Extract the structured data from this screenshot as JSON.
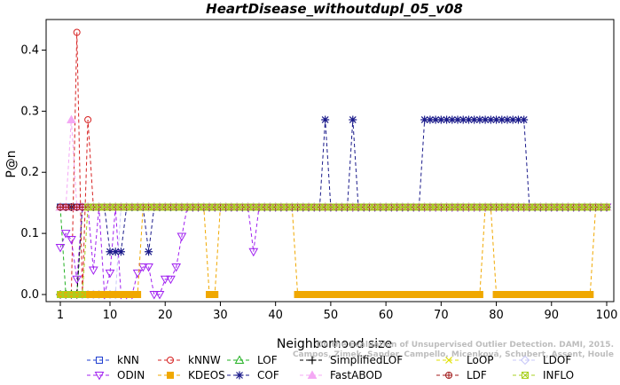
{
  "chart_data": {
    "type": "line",
    "title": "HeartDisease_withoutdupl_05_v08",
    "xlabel": "Neighborhood size",
    "ylabel": "P@n",
    "xlim": [
      1,
      100
    ],
    "ylim": [
      0,
      0.45
    ],
    "xticks": [
      1,
      10,
      20,
      30,
      40,
      50,
      60,
      70,
      80,
      90,
      100
    ],
    "yticks": [
      0.0,
      0.1,
      0.2,
      0.3,
      0.4
    ],
    "ytick_labels": [
      "0.0",
      "0.1",
      "0.2",
      "0.3",
      "0.4"
    ],
    "grid": false,
    "legend_placement": "bottom",
    "series": [
      {
        "name": "kNN",
        "color": "#1f3fd0",
        "marker": "square",
        "constant": 0.143,
        "start": 1,
        "overrides": []
      },
      {
        "name": "kNNW",
        "color": "#d62020",
        "marker": "circle",
        "constant": 0.143,
        "start": 5,
        "overrides": [
          [
            1,
            0
          ],
          [
            2,
            0
          ],
          [
            3,
            0
          ],
          [
            4,
            0.429
          ],
          [
            5,
            0
          ],
          [
            6,
            0.286
          ]
        ]
      },
      {
        "name": "LOF",
        "color": "#20b020",
        "marker": "triangle-up",
        "constant": 0.143,
        "start": 6,
        "overrides": [
          [
            1,
            0.143
          ],
          [
            2,
            0
          ],
          [
            3,
            0
          ],
          [
            4,
            0
          ],
          [
            5,
            0.143
          ],
          [
            6,
            0.143
          ]
        ]
      },
      {
        "name": "SimplifiedLOF",
        "color": "#000000",
        "marker": "plus",
        "constant": 0.143,
        "start": 5,
        "overrides": [
          [
            1,
            0
          ],
          [
            2,
            0
          ],
          [
            3,
            0
          ],
          [
            4,
            0
          ],
          [
            5,
            0.143
          ]
        ]
      },
      {
        "name": "LoOP",
        "color": "#e0e000",
        "marker": "x",
        "constant": 0.143,
        "start": 1,
        "overrides": []
      },
      {
        "name": "LDOF",
        "color": "#c8c8f8",
        "marker": "diamond",
        "constant": 0.143,
        "start": 12,
        "overrides": [
          [
            5,
            0
          ],
          [
            6,
            0
          ],
          [
            7,
            0
          ],
          [
            8,
            0
          ],
          [
            9,
            0
          ],
          [
            10,
            0
          ],
          [
            11,
            0
          ],
          [
            12,
            0.143
          ]
        ]
      },
      {
        "name": "ODIN",
        "color": "#a020f0",
        "marker": "triangle-down",
        "constant": 0.143,
        "start": 1,
        "overrides": [
          [
            1,
            0.077
          ],
          [
            2,
            0.1
          ],
          [
            3,
            0.09
          ],
          [
            4,
            0.025
          ],
          [
            5,
            0.143
          ],
          [
            6,
            0.143
          ],
          [
            7,
            0.04
          ],
          [
            8,
            0.143
          ],
          [
            9,
            0
          ],
          [
            10,
            0.035
          ],
          [
            11,
            0.143
          ],
          [
            12,
            0
          ],
          [
            13,
            0
          ],
          [
            14,
            0
          ],
          [
            15,
            0.035
          ],
          [
            16,
            0.045
          ],
          [
            17,
            0.045
          ],
          [
            18,
            0
          ],
          [
            19,
            0
          ],
          [
            20,
            0.025
          ],
          [
            21,
            0.025
          ],
          [
            22,
            0.045
          ],
          [
            23,
            0.095
          ],
          [
            24,
            0.143
          ],
          [
            36,
            0.07
          ]
        ]
      },
      {
        "name": "KDEOS",
        "color": "#f0a800",
        "marker": "square-filled",
        "constant": 0.143,
        "start": 1,
        "overrides": [
          [
            1,
            0
          ],
          [
            2,
            0
          ],
          [
            3,
            0
          ],
          [
            4,
            0
          ],
          [
            5,
            0
          ],
          [
            6,
            0
          ],
          [
            7,
            0
          ],
          [
            8,
            0
          ],
          [
            9,
            0
          ],
          [
            10,
            0
          ],
          [
            11,
            0
          ],
          [
            12,
            0
          ],
          [
            13,
            0
          ],
          [
            14,
            0
          ],
          [
            15,
            0
          ],
          [
            28,
            0
          ],
          [
            29,
            0
          ],
          [
            44,
            0
          ],
          [
            45,
            0
          ],
          [
            46,
            0
          ],
          [
            47,
            0
          ],
          [
            48,
            0
          ],
          [
            49,
            0
          ],
          [
            50,
            0
          ],
          [
            51,
            0
          ],
          [
            52,
            0
          ],
          [
            53,
            0
          ],
          [
            54,
            0
          ],
          [
            55,
            0
          ],
          [
            56,
            0
          ],
          [
            57,
            0
          ],
          [
            58,
            0
          ],
          [
            59,
            0
          ],
          [
            60,
            0
          ],
          [
            61,
            0
          ],
          [
            62,
            0
          ],
          [
            63,
            0
          ],
          [
            64,
            0
          ],
          [
            65,
            0
          ],
          [
            66,
            0
          ],
          [
            67,
            0
          ],
          [
            68,
            0
          ],
          [
            69,
            0
          ],
          [
            70,
            0
          ],
          [
            71,
            0
          ],
          [
            72,
            0
          ],
          [
            73,
            0
          ],
          [
            74,
            0
          ],
          [
            75,
            0
          ],
          [
            76,
            0
          ],
          [
            77,
            0
          ],
          [
            80,
            0
          ],
          [
            81,
            0
          ],
          [
            82,
            0
          ],
          [
            83,
            0
          ],
          [
            84,
            0
          ],
          [
            85,
            0
          ],
          [
            86,
            0
          ],
          [
            87,
            0
          ],
          [
            88,
            0
          ],
          [
            89,
            0
          ],
          [
            90,
            0
          ],
          [
            91,
            0
          ],
          [
            92,
            0
          ],
          [
            93,
            0
          ],
          [
            94,
            0
          ],
          [
            95,
            0
          ],
          [
            96,
            0
          ],
          [
            97,
            0
          ]
        ]
      },
      {
        "name": "COF",
        "color": "#1a1a8a",
        "marker": "asterisk",
        "constant": 0.143,
        "start": 1,
        "overrides": [
          [
            10,
            0.07
          ],
          [
            11,
            0.07
          ],
          [
            12,
            0.07
          ],
          [
            17,
            0.07
          ],
          [
            49,
            0.286
          ],
          [
            54,
            0.286
          ],
          [
            67,
            0.286
          ],
          [
            68,
            0.286
          ],
          [
            69,
            0.286
          ],
          [
            70,
            0.286
          ],
          [
            71,
            0.286
          ],
          [
            72,
            0.286
          ],
          [
            73,
            0.286
          ],
          [
            74,
            0.286
          ],
          [
            75,
            0.286
          ],
          [
            76,
            0.286
          ],
          [
            77,
            0.286
          ],
          [
            78,
            0.286
          ],
          [
            79,
            0.286
          ],
          [
            80,
            0.286
          ],
          [
            81,
            0.286
          ],
          [
            82,
            0.286
          ],
          [
            83,
            0.286
          ],
          [
            84,
            0.286
          ],
          [
            85,
            0.286
          ]
        ]
      },
      {
        "name": "FastABOD",
        "color": "#f4a8f4",
        "marker": "triangle-up-filled",
        "constant": 0.143,
        "start": 1,
        "overrides": [
          [
            3,
            0.286
          ]
        ]
      },
      {
        "name": "LDF",
        "color": "#a01818",
        "marker": "circle-cross",
        "constant": 0.143,
        "start": 1,
        "overrides": []
      },
      {
        "name": "INFLO",
        "color": "#a8d020",
        "marker": "square-cross",
        "constant": 0.143,
        "start": 6,
        "overrides": [
          [
            1,
            0
          ],
          [
            2,
            0
          ],
          [
            3,
            0
          ],
          [
            4,
            0
          ],
          [
            5,
            0
          ]
        ]
      }
    ]
  },
  "watermark": {
    "line1": "Campos, Zimek, Sander, Campello, Micenková, Schubert, Assent, Houle",
    "line2": "On the Evaluation of Unsupervised Outlier Detection. DAMI, 2015."
  },
  "legend_rows": [
    [
      "kNN",
      "kNNW",
      "LOF",
      "SimplifiedLOF",
      "LoOP",
      "LDOF"
    ],
    [
      "ODIN",
      "KDEOS",
      "COF",
      "FastABOD",
      "LDF",
      "INFLO"
    ]
  ]
}
